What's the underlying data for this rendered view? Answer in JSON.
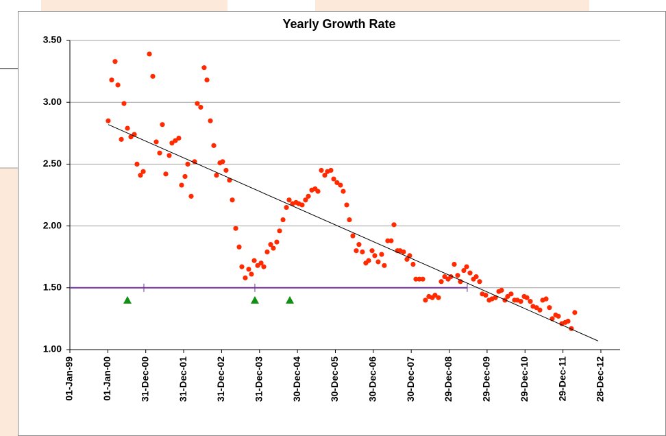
{
  "chart_data": {
    "type": "scatter",
    "title": "Yearly Growth Rate",
    "xlim": [
      36161,
      41456
    ],
    "ylim": [
      1,
      3.5
    ],
    "xticks": [
      {
        "value": 36161,
        "label": "01-Jan-99"
      },
      {
        "value": 36526,
        "label": "01-Jan-00"
      },
      {
        "value": 36891,
        "label": "31-Dec-00"
      },
      {
        "value": 37256,
        "label": "31-Dec-01"
      },
      {
        "value": 37621,
        "label": "31-Dec-02"
      },
      {
        "value": 37986,
        "label": "31-Dec-03"
      },
      {
        "value": 38351,
        "label": "30-Dec-04"
      },
      {
        "value": 38716,
        "label": "30-Dec-05"
      },
      {
        "value": 39081,
        "label": "30-Dec-06"
      },
      {
        "value": 39446,
        "label": "30-Dec-07"
      },
      {
        "value": 39811,
        "label": "29-Dec-08"
      },
      {
        "value": 40176,
        "label": "29-Dec-09"
      },
      {
        "value": 40541,
        "label": "29-Dec-10"
      },
      {
        "value": 40906,
        "label": "29-Dec-11"
      },
      {
        "value": 41271,
        "label": "28-Dec-12"
      }
    ],
    "yticks": [
      {
        "value": 1,
        "label": "1.00"
      },
      {
        "value": 1.5,
        "label": "1.50"
      },
      {
        "value": 2,
        "label": "2.00"
      },
      {
        "value": 2.5,
        "label": "2.50"
      },
      {
        "value": 3,
        "label": "3.00"
      },
      {
        "value": 3.5,
        "label": "3.50"
      }
    ],
    "grid": true,
    "series": [
      {
        "color": "#ff2a00",
        "marker": "circle",
        "x": [
          36530,
          36563,
          36596,
          36623,
          36656,
          36682,
          36715,
          36748,
          36781,
          36807,
          36840,
          36867,
          36926,
          36959,
          36992,
          37025,
          37051,
          37084,
          37117,
          37143,
          37176,
          37209,
          37236,
          37269,
          37295,
          37328,
          37361,
          37387,
          37420,
          37453,
          37480,
          37513,
          37546,
          37572,
          37605,
          37631,
          37664,
          37697,
          37724,
          37757,
          37790,
          37816,
          37849,
          37882,
          37908,
          37935,
          37968,
          38001,
          38027,
          38060,
          38093,
          38119,
          38152,
          38179,
          38212,
          38245,
          38271,
          38304,
          38337,
          38363,
          38396,
          38429,
          38456,
          38489,
          38521,
          38548,
          38581,
          38614,
          38640,
          38673,
          38700,
          38732,
          38765,
          38792,
          38825,
          38851,
          38884,
          38917,
          38943,
          38976,
          39009,
          39036,
          39069,
          39095,
          39128,
          39161,
          39187,
          39220,
          39253,
          39280,
          39313,
          39339,
          39372,
          39405,
          39431,
          39464,
          39491,
          39524,
          39557,
          39583,
          39616,
          39649,
          39675,
          39708,
          39735,
          39768,
          39801,
          39827,
          39860,
          39893,
          39919,
          39952,
          39979,
          40012,
          40045,
          40071,
          40104,
          40130,
          40163,
          40196,
          40223,
          40256,
          40289,
          40315,
          40348,
          40374,
          40407,
          40440,
          40467,
          40500,
          40533,
          40559,
          40592,
          40618,
          40651,
          40684,
          40711,
          40744,
          40776,
          40803,
          40836,
          40862,
          40895,
          40928,
          40955,
          40987,
          41020
        ],
        "values": [
          2.85,
          3.18,
          3.33,
          3.14,
          2.7,
          2.99,
          2.79,
          2.72,
          2.74,
          2.5,
          2.41,
          2.44,
          3.39,
          3.21,
          2.68,
          2.59,
          2.82,
          2.42,
          2.57,
          2.67,
          2.69,
          2.71,
          2.33,
          2.4,
          2.5,
          2.24,
          2.52,
          2.99,
          2.96,
          3.28,
          3.18,
          2.85,
          2.65,
          2.41,
          2.51,
          2.52,
          2.45,
          2.37,
          2.21,
          1.98,
          1.83,
          1.67,
          1.58,
          1.65,
          1.61,
          1.72,
          1.68,
          1.7,
          1.67,
          1.79,
          1.85,
          1.82,
          1.87,
          1.96,
          2.05,
          2.15,
          2.21,
          2.18,
          2.19,
          2.18,
          2.17,
          2.21,
          2.24,
          2.29,
          2.3,
          2.28,
          2.45,
          2.41,
          2.44,
          2.45,
          2.38,
          2.35,
          2.33,
          2.28,
          2.17,
          2.05,
          1.92,
          1.8,
          1.85,
          1.79,
          1.7,
          1.72,
          1.8,
          1.76,
          1.71,
          1.77,
          1.68,
          1.88,
          1.88,
          2.01,
          1.8,
          1.8,
          1.79,
          1.73,
          1.76,
          1.69,
          1.57,
          1.57,
          1.57,
          1.4,
          1.43,
          1.42,
          1.44,
          1.42,
          1.55,
          1.59,
          1.57,
          1.59,
          1.69,
          1.6,
          1.55,
          1.64,
          1.67,
          1.62,
          1.57,
          1.59,
          1.55,
          1.45,
          1.44,
          1.4,
          1.41,
          1.42,
          1.47,
          1.48,
          1.4,
          1.43,
          1.45,
          1.4,
          1.4,
          1.39,
          1.43,
          1.42,
          1.39,
          1.35,
          1.34,
          1.32,
          1.4,
          1.41,
          1.34,
          1.25,
          1.28,
          1.27,
          1.21,
          1.22,
          1.23,
          1.17,
          1.3
        ]
      },
      {
        "color": "#000000",
        "marker": "line",
        "x": [
          36530,
          41245
        ],
        "values": [
          2.82,
          1.07
        ]
      },
      {
        "color": "#7030a0",
        "marker": "ticked-line",
        "x": [
          36161,
          36873,
          37941,
          39985
        ],
        "values": [
          1.5,
          1.5,
          1.5,
          1.5
        ]
      },
      {
        "color": "#109010",
        "marker": "triangle",
        "x": [
          36715,
          37941,
          38278
        ],
        "values": [
          1.4,
          1.4,
          1.4
        ]
      }
    ]
  }
}
